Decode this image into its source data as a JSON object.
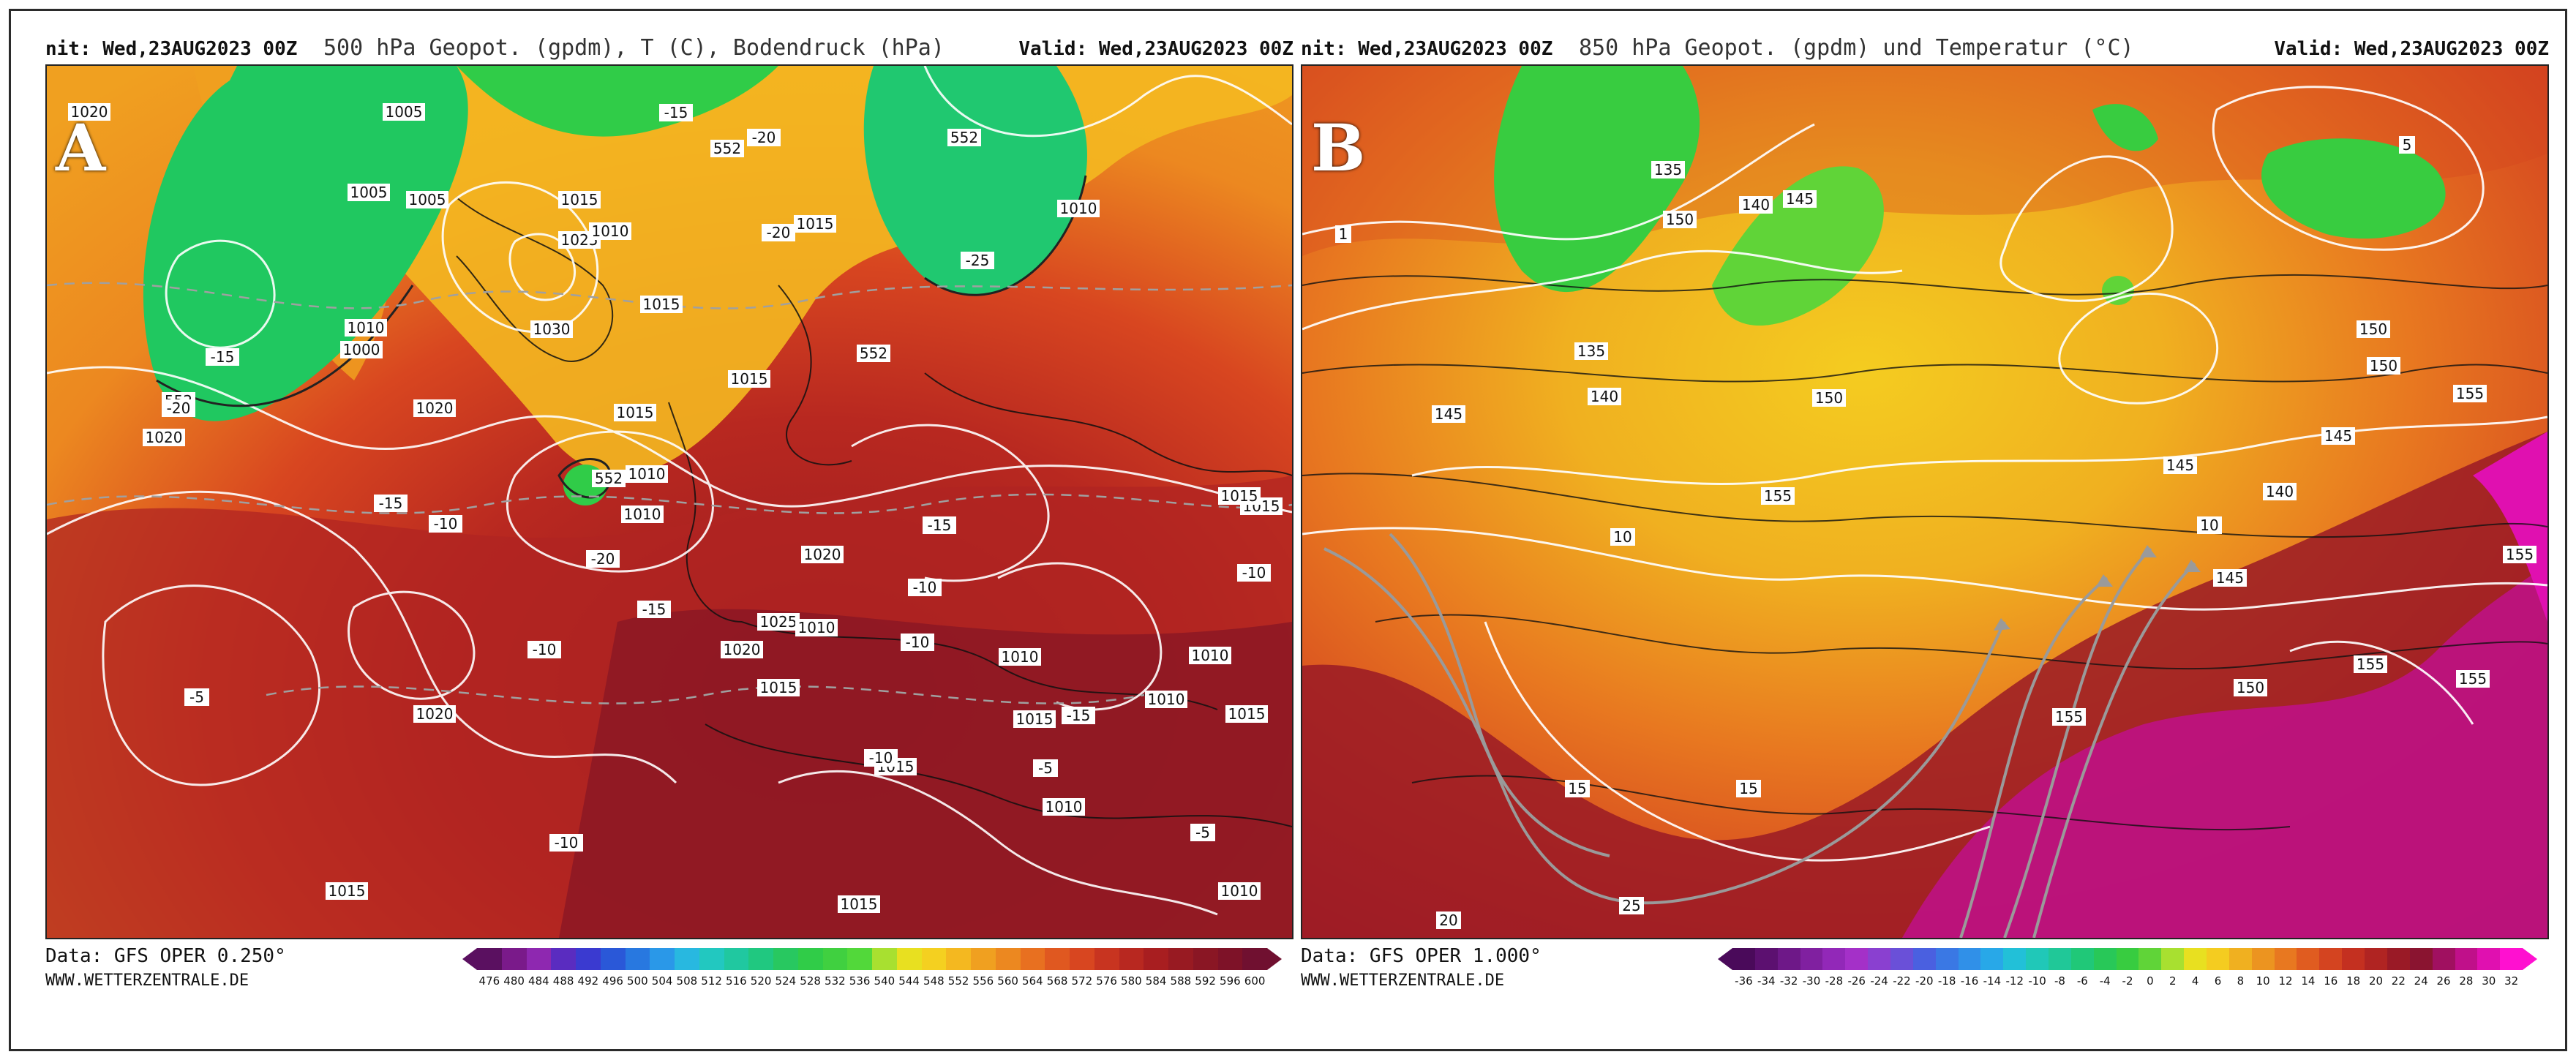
{
  "panel_a": {
    "letter": "A",
    "init_text": "nit: Wed,23AUG2023 00Z",
    "title": "500 hPa Geopot. (gpdm), T (C), Bodendruck (hPa)",
    "valid_text": "Valid: Wed,23AUG2023 00Z",
    "source": "Data: GFS OPER 0.250°",
    "website": "WWW.WETTERZENTRALE.DE",
    "colorbar_ticks": [
      "476",
      "480",
      "484",
      "488",
      "492",
      "496",
      "500",
      "504",
      "508",
      "512",
      "516",
      "520",
      "524",
      "528",
      "532",
      "536",
      "540",
      "544",
      "548",
      "552",
      "556",
      "560",
      "564",
      "568",
      "572",
      "576",
      "580",
      "584",
      "588",
      "592",
      "596",
      "600"
    ],
    "colorbar_colors": [
      "#5a1060",
      "#7a1a8a",
      "#8e28b0",
      "#5a2cc0",
      "#3a3ad0",
      "#2a58d8",
      "#2878e0",
      "#2a98e8",
      "#28b8e0",
      "#22c8c0",
      "#20c8a0",
      "#20c880",
      "#28c860",
      "#30cc48",
      "#40d040",
      "#52d83a",
      "#a8e030",
      "#e8e020",
      "#f4d020",
      "#f4b820",
      "#f0a020",
      "#ec8820",
      "#e87020",
      "#e05820",
      "#d84620",
      "#c83420",
      "#b82820",
      "#a81e20",
      "#981a22",
      "#8a1624",
      "#7e1228",
      "#701030"
    ],
    "pressure_labels": [
      "1020",
      "1005",
      "1005",
      "1005",
      "1015",
      "1025",
      "1010",
      "1000",
      "1010",
      "1030",
      "1015",
      "1020",
      "1015",
      "1010",
      "1015",
      "1015",
      "1010",
      "1010",
      "1020",
      "1025",
      "1020",
      "1010",
      "1015",
      "1010",
      "1015",
      "1015",
      "1010",
      "1015",
      "1015",
      "1010",
      "1015",
      "1020",
      "1010",
      "1015",
      "1015",
      "1010",
      "1010",
      "1020"
    ],
    "geopot_labels": [
      "552",
      "552",
      "552",
      "552",
      "552"
    ],
    "temp_labels": [
      "-15",
      "-20",
      "-20",
      "-25",
      "-20",
      "-15",
      "-15",
      "-20",
      "-15",
      "-10",
      "-15",
      "-10",
      "-10",
      "-15",
      "-10",
      "-10",
      "-5",
      "-10",
      "-5",
      "-5",
      "-10",
      "-5"
    ]
  },
  "panel_b": {
    "letter": "B",
    "init_text": "nit: Wed,23AUG2023 00Z",
    "title": "850 hPa Geopot. (gpdm) und Temperatur (°C)",
    "valid_text": "Valid: Wed,23AUG2023 00Z",
    "source": "Data: GFS OPER 1.000°",
    "website": "WWW.WETTERZENTRALE.DE",
    "colorbar_ticks": [
      "-36",
      "-34",
      "-32",
      "-30",
      "-28",
      "-26",
      "-24",
      "-22",
      "-20",
      "-18",
      "-16",
      "-14",
      "-12",
      "-10",
      "-8",
      "-6",
      "-4",
      "-2",
      "0",
      "2",
      "4",
      "6",
      "8",
      "10",
      "12",
      "14",
      "16",
      "18",
      "20",
      "22",
      "24",
      "26",
      "28",
      "30",
      "32"
    ],
    "colorbar_colors": [
      "#4a0a5a",
      "#5c1070",
      "#6e1888",
      "#8020a0",
      "#9228b8",
      "#a430c8",
      "#8a40d0",
      "#6a50d8",
      "#4a60e0",
      "#3a78e4",
      "#3090e8",
      "#28a8e8",
      "#22c0d8",
      "#20c8b8",
      "#20c898",
      "#20c878",
      "#28c858",
      "#38cc40",
      "#60d438",
      "#a8e030",
      "#e8e020",
      "#f4cc20",
      "#f0b020",
      "#ec9420",
      "#e87820",
      "#e05c20",
      "#d44420",
      "#c43020",
      "#b02422",
      "#9a1a26",
      "#8a1430",
      "#a01060",
      "#c0108a",
      "#e010b0",
      "#ff10d0"
    ],
    "geopot_labels": [
      "135",
      "150",
      "140",
      "145",
      "135",
      "140",
      "145",
      "155",
      "150",
      "145",
      "140",
      "145",
      "150",
      "155",
      "145",
      "150",
      "150",
      "155",
      "155",
      "155",
      "155"
    ],
    "temp_labels": [
      "1",
      "5",
      "10",
      "10",
      "15",
      "15",
      "20",
      "25"
    ]
  }
}
